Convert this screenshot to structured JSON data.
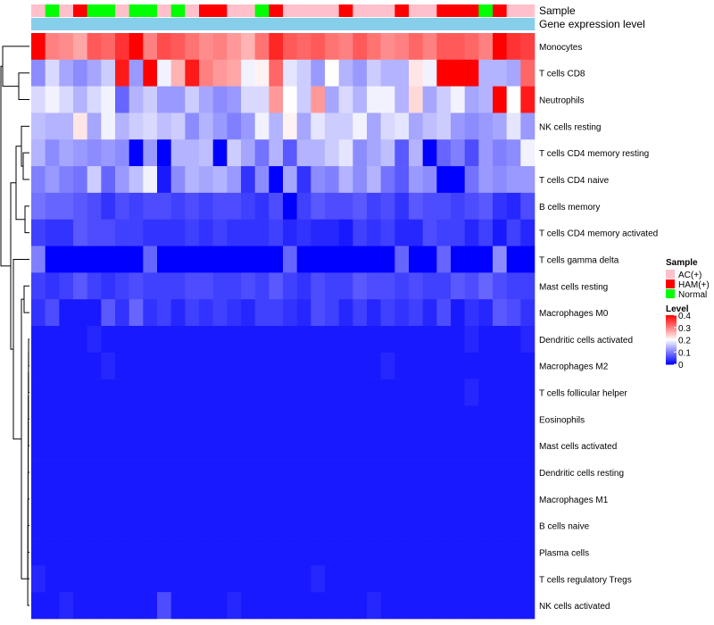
{
  "chart_data": {
    "type": "heatmap",
    "title": "",
    "annotation_rows": [
      {
        "label": "Sample",
        "values": [
          "AC(+)",
          "Normal",
          "AC(+)",
          "HAM(+)",
          "Normal",
          "Normal",
          "AC(+)",
          "Normal",
          "Normal",
          "AC(+)",
          "Normal",
          "AC(+)",
          "HAM(+)",
          "HAM(+)",
          "AC(+)",
          "AC(+)",
          "Normal",
          "HAM(+)",
          "AC(+)",
          "AC(+)",
          "AC(+)",
          "AC(+)",
          "HAM(+)",
          "AC(+)",
          "AC(+)",
          "AC(+)",
          "HAM(+)",
          "AC(+)",
          "AC(+)",
          "HAM(+)",
          "HAM(+)",
          "HAM(+)",
          "Normal",
          "HAM(+)",
          "AC(+)",
          "AC(+)"
        ]
      },
      {
        "label": "Gene expression level",
        "values": [
          "level",
          "level",
          "level",
          "level",
          "level",
          "level",
          "level",
          "level",
          "level",
          "level",
          "level",
          "level",
          "level",
          "level",
          "level",
          "level",
          "level",
          "level",
          "level",
          "level",
          "level",
          "level",
          "level",
          "level",
          "level",
          "level",
          "level",
          "level",
          "level",
          "level",
          "level",
          "level",
          "level",
          "level",
          "level",
          "level"
        ]
      }
    ],
    "rows": [
      "Monocytes",
      "T cells CD8",
      "Neutrophils",
      "NK cells resting",
      "T cells CD4 memory resting",
      "T cells CD4 naive",
      "B cells memory",
      "T cells CD4 memory activated",
      "T cells gamma delta",
      "Mast cells resting",
      "Macrophages M0",
      "Dendritic cells activated",
      "Macrophages M2",
      "T cells follicular helper",
      "Eosinophils",
      "Mast cells activated",
      "Dendritic cells resting",
      "Macrophages M1",
      "B cells naive",
      "Plasma cells",
      "T cells regulatory  Tregs",
      "NK cells activated"
    ],
    "values": [
      [
        0.4,
        0.3,
        0.29,
        0.27,
        0.33,
        0.32,
        0.36,
        0.4,
        0.3,
        0.34,
        0.33,
        0.31,
        0.29,
        0.3,
        0.28,
        0.26,
        0.31,
        0.37,
        0.33,
        0.32,
        0.33,
        0.31,
        0.3,
        0.33,
        0.31,
        0.29,
        0.3,
        0.32,
        0.3,
        0.33,
        0.33,
        0.32,
        0.3,
        0.4,
        0.36,
        0.35
      ],
      [
        0.11,
        0.17,
        0.13,
        0.11,
        0.13,
        0.16,
        0.38,
        0.12,
        0.4,
        0.19,
        0.26,
        0.38,
        0.3,
        0.28,
        0.27,
        0.19,
        0.21,
        0.32,
        0.18,
        0.16,
        0.12,
        0.2,
        0.14,
        0.12,
        0.16,
        0.14,
        0.14,
        0.22,
        0.19,
        0.4,
        0.4,
        0.4,
        0.14,
        0.14,
        0.13,
        0.32
      ],
      [
        0.17,
        0.19,
        0.17,
        0.14,
        0.17,
        0.19,
        0.08,
        0.14,
        0.16,
        0.12,
        0.12,
        0.16,
        0.13,
        0.11,
        0.12,
        0.17,
        0.17,
        0.28,
        0.2,
        0.16,
        0.28,
        0.13,
        0.17,
        0.14,
        0.19,
        0.19,
        0.14,
        0.23,
        0.13,
        0.16,
        0.19,
        0.13,
        0.14,
        0.4,
        0.2,
        0.38
      ],
      [
        0.15,
        0.14,
        0.14,
        0.22,
        0.13,
        0.19,
        0.14,
        0.16,
        0.17,
        0.15,
        0.16,
        0.11,
        0.14,
        0.12,
        0.1,
        0.12,
        0.19,
        0.14,
        0.21,
        0.13,
        0.18,
        0.16,
        0.16,
        0.19,
        0.13,
        0.17,
        0.18,
        0.13,
        0.15,
        0.16,
        0.12,
        0.11,
        0.12,
        0.13,
        0.18,
        0.12
      ],
      [
        0.14,
        0.11,
        0.13,
        0.12,
        0.11,
        0.12,
        0.11,
        0.0,
        0.12,
        0.0,
        0.14,
        0.14,
        0.15,
        0.0,
        0.16,
        0.13,
        0.09,
        0.14,
        0.07,
        0.14,
        0.14,
        0.16,
        0.18,
        0.11,
        0.13,
        0.15,
        0.07,
        0.14,
        0.0,
        0.08,
        0.1,
        0.06,
        0.12,
        0.1,
        0.11,
        0.19
      ],
      [
        0.1,
        0.12,
        0.1,
        0.09,
        0.16,
        0.08,
        0.12,
        0.15,
        0.19,
        0.02,
        0.11,
        0.14,
        0.13,
        0.14,
        0.12,
        0.04,
        0.11,
        0.0,
        0.13,
        0.04,
        0.11,
        0.1,
        0.14,
        0.11,
        0.14,
        0.09,
        0.07,
        0.12,
        0.11,
        0.0,
        0.0,
        0.09,
        0.12,
        0.11,
        0.12,
        0.12
      ],
      [
        0.09,
        0.08,
        0.08,
        0.07,
        0.06,
        0.04,
        0.06,
        0.05,
        0.06,
        0.06,
        0.05,
        0.06,
        0.05,
        0.06,
        0.06,
        0.05,
        0.04,
        0.06,
        0.0,
        0.05,
        0.07,
        0.06,
        0.06,
        0.07,
        0.05,
        0.06,
        0.04,
        0.07,
        0.06,
        0.06,
        0.05,
        0.06,
        0.07,
        0.04,
        0.03,
        0.06
      ],
      [
        0.05,
        0.04,
        0.04,
        0.07,
        0.06,
        0.06,
        0.05,
        0.05,
        0.04,
        0.04,
        0.04,
        0.05,
        0.04,
        0.05,
        0.04,
        0.04,
        0.04,
        0.05,
        0.03,
        0.04,
        0.03,
        0.03,
        0.02,
        0.05,
        0.04,
        0.05,
        0.03,
        0.03,
        0.06,
        0.05,
        0.05,
        0.03,
        0.05,
        0.02,
        0.05,
        0.03
      ],
      [
        0.1,
        0.0,
        0.0,
        0.0,
        0.0,
        0.0,
        0.0,
        0.0,
        0.08,
        0.0,
        0.0,
        0.0,
        0.0,
        0.0,
        0.0,
        0.0,
        0.0,
        0.0,
        0.08,
        0.0,
        0.0,
        0.0,
        0.0,
        0.0,
        0.0,
        0.0,
        0.08,
        0.0,
        0.0,
        0.08,
        0.0,
        0.0,
        0.0,
        0.11,
        0.0,
        0.0
      ],
      [
        0.05,
        0.04,
        0.05,
        0.07,
        0.05,
        0.04,
        0.05,
        0.06,
        0.05,
        0.05,
        0.05,
        0.06,
        0.06,
        0.05,
        0.05,
        0.06,
        0.05,
        0.07,
        0.05,
        0.04,
        0.06,
        0.05,
        0.05,
        0.07,
        0.06,
        0.06,
        0.05,
        0.06,
        0.05,
        0.05,
        0.07,
        0.06,
        0.08,
        0.06,
        0.05,
        0.05
      ],
      [
        0.04,
        0.06,
        0.02,
        0.02,
        0.02,
        0.07,
        0.04,
        0.08,
        0.04,
        0.05,
        0.03,
        0.05,
        0.04,
        0.05,
        0.04,
        0.03,
        0.05,
        0.05,
        0.04,
        0.03,
        0.06,
        0.05,
        0.03,
        0.05,
        0.03,
        0.05,
        0.04,
        0.05,
        0.03,
        0.06,
        0.02,
        0.04,
        0.03,
        0.07,
        0.06,
        0.04
      ],
      [
        0.02,
        0.02,
        0.02,
        0.02,
        0.03,
        0.02,
        0.02,
        0.02,
        0.02,
        0.02,
        0.02,
        0.02,
        0.02,
        0.02,
        0.02,
        0.02,
        0.02,
        0.02,
        0.02,
        0.02,
        0.02,
        0.02,
        0.02,
        0.02,
        0.02,
        0.02,
        0.02,
        0.02,
        0.02,
        0.02,
        0.02,
        0.03,
        0.02,
        0.02,
        0.02,
        0.03
      ],
      [
        0.02,
        0.02,
        0.02,
        0.02,
        0.02,
        0.03,
        0.02,
        0.02,
        0.02,
        0.02,
        0.02,
        0.02,
        0.02,
        0.02,
        0.02,
        0.02,
        0.02,
        0.02,
        0.02,
        0.02,
        0.02,
        0.02,
        0.02,
        0.02,
        0.02,
        0.03,
        0.02,
        0.02,
        0.02,
        0.02,
        0.02,
        0.02,
        0.02,
        0.02,
        0.02,
        0.02
      ],
      [
        0.02,
        0.02,
        0.02,
        0.02,
        0.02,
        0.02,
        0.02,
        0.02,
        0.02,
        0.02,
        0.02,
        0.02,
        0.02,
        0.02,
        0.02,
        0.02,
        0.02,
        0.02,
        0.02,
        0.02,
        0.02,
        0.02,
        0.02,
        0.02,
        0.02,
        0.02,
        0.02,
        0.02,
        0.02,
        0.02,
        0.02,
        0.03,
        0.02,
        0.02,
        0.02,
        0.02
      ],
      [
        0.02,
        0.02,
        0.02,
        0.02,
        0.02,
        0.02,
        0.02,
        0.02,
        0.02,
        0.02,
        0.02,
        0.02,
        0.02,
        0.02,
        0.02,
        0.02,
        0.02,
        0.02,
        0.02,
        0.02,
        0.02,
        0.02,
        0.02,
        0.02,
        0.02,
        0.02,
        0.02,
        0.02,
        0.02,
        0.02,
        0.02,
        0.02,
        0.02,
        0.02,
        0.02,
        0.02
      ],
      [
        0.02,
        0.02,
        0.02,
        0.02,
        0.02,
        0.02,
        0.02,
        0.02,
        0.02,
        0.02,
        0.02,
        0.02,
        0.02,
        0.02,
        0.02,
        0.02,
        0.02,
        0.02,
        0.02,
        0.02,
        0.02,
        0.02,
        0.02,
        0.02,
        0.02,
        0.02,
        0.02,
        0.02,
        0.02,
        0.02,
        0.02,
        0.02,
        0.02,
        0.02,
        0.02,
        0.02
      ],
      [
        0.02,
        0.02,
        0.02,
        0.02,
        0.02,
        0.02,
        0.02,
        0.02,
        0.02,
        0.02,
        0.02,
        0.02,
        0.02,
        0.02,
        0.02,
        0.02,
        0.02,
        0.02,
        0.02,
        0.02,
        0.02,
        0.02,
        0.02,
        0.02,
        0.02,
        0.02,
        0.02,
        0.02,
        0.02,
        0.02,
        0.02,
        0.02,
        0.02,
        0.02,
        0.02,
        0.02
      ],
      [
        0.02,
        0.02,
        0.02,
        0.02,
        0.02,
        0.02,
        0.02,
        0.02,
        0.02,
        0.02,
        0.02,
        0.02,
        0.02,
        0.02,
        0.02,
        0.02,
        0.02,
        0.02,
        0.02,
        0.02,
        0.02,
        0.02,
        0.02,
        0.02,
        0.02,
        0.02,
        0.02,
        0.02,
        0.02,
        0.02,
        0.02,
        0.02,
        0.02,
        0.02,
        0.02,
        0.02
      ],
      [
        0.02,
        0.02,
        0.02,
        0.02,
        0.02,
        0.02,
        0.02,
        0.02,
        0.02,
        0.02,
        0.02,
        0.02,
        0.02,
        0.02,
        0.02,
        0.02,
        0.02,
        0.02,
        0.02,
        0.02,
        0.02,
        0.02,
        0.02,
        0.02,
        0.02,
        0.02,
        0.02,
        0.02,
        0.02,
        0.02,
        0.02,
        0.02,
        0.02,
        0.02,
        0.02,
        0.02
      ],
      [
        0.02,
        0.02,
        0.02,
        0.02,
        0.02,
        0.02,
        0.02,
        0.02,
        0.02,
        0.02,
        0.02,
        0.02,
        0.02,
        0.02,
        0.02,
        0.02,
        0.02,
        0.02,
        0.02,
        0.02,
        0.02,
        0.02,
        0.02,
        0.02,
        0.02,
        0.02,
        0.02,
        0.02,
        0.02,
        0.02,
        0.02,
        0.02,
        0.02,
        0.02,
        0.02,
        0.02
      ],
      [
        0.03,
        0.02,
        0.02,
        0.02,
        0.02,
        0.02,
        0.02,
        0.02,
        0.02,
        0.02,
        0.02,
        0.02,
        0.02,
        0.02,
        0.02,
        0.02,
        0.02,
        0.02,
        0.02,
        0.02,
        0.03,
        0.02,
        0.02,
        0.02,
        0.02,
        0.02,
        0.02,
        0.02,
        0.02,
        0.02,
        0.02,
        0.02,
        0.02,
        0.02,
        0.02,
        0.02
      ],
      [
        0.02,
        0.02,
        0.03,
        0.02,
        0.02,
        0.02,
        0.02,
        0.02,
        0.02,
        0.06,
        0.02,
        0.02,
        0.02,
        0.02,
        0.03,
        0.02,
        0.02,
        0.02,
        0.02,
        0.02,
        0.02,
        0.02,
        0.02,
        0.02,
        0.03,
        0.02,
        0.02,
        0.02,
        0.02,
        0.02,
        0.02,
        0.02,
        0.02,
        0.02,
        0.02,
        0.02
      ]
    ],
    "color_scale": {
      "min": 0,
      "max": 0.4,
      "colors": [
        "#0000ff",
        "#ffffff",
        "#ff0000"
      ]
    },
    "legend": {
      "sample_title": "Sample",
      "sample_items": [
        {
          "label": "AC(+)",
          "color": "#ffc0cb"
        },
        {
          "label": "HAM(+)",
          "color": "#ff0000"
        },
        {
          "label": "Normal",
          "color": "#00ff00"
        }
      ],
      "level_title": "Level",
      "level_ticks": [
        0.4,
        0.3,
        0.2,
        0.1,
        0
      ]
    },
    "gene_expression_color": "#87ceeb",
    "row_dendrogram": true,
    "legend_position": "right"
  }
}
